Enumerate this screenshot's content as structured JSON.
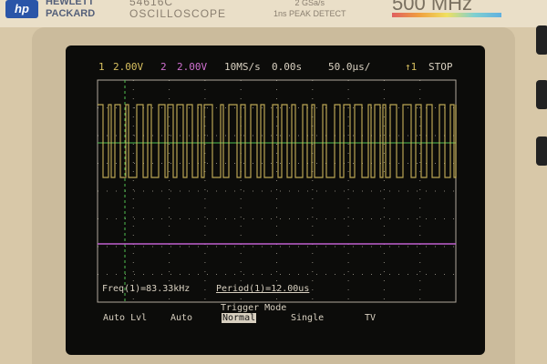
{
  "brand": {
    "logo": "hp",
    "name_line1": "HEWLETT",
    "name_line2": "PACKARD",
    "model": "54616C",
    "model_sub": "OSCILLOSCOPE",
    "spec_line1": "2 GSa/s",
    "spec_line2": "1ns PEAK DETECT",
    "bandwidth": "500 MHz"
  },
  "status": {
    "ch1_label": "1",
    "ch1_scale": "2.00V",
    "ch2_label": "2",
    "ch2_scale": "2.00V",
    "sample_rate": "10MS/s",
    "delay": "0.00s",
    "timebase": "50.0µs/",
    "trigger": "↑1",
    "run_state": "STOP"
  },
  "measurements": {
    "freq": "Freq(1)=83.33kHz",
    "period": "Period(1)=12.00us"
  },
  "softkeys": {
    "menu_title": "Trigger Mode",
    "items": [
      "Auto Lvl",
      "Auto",
      "Normal",
      "Single",
      "TV"
    ],
    "selected": "Normal"
  },
  "colors": {
    "ch1": "#d8c060",
    "ch2": "#c060d0",
    "trigger_level": "#50c050",
    "graticule": "#d8d0c0"
  }
}
